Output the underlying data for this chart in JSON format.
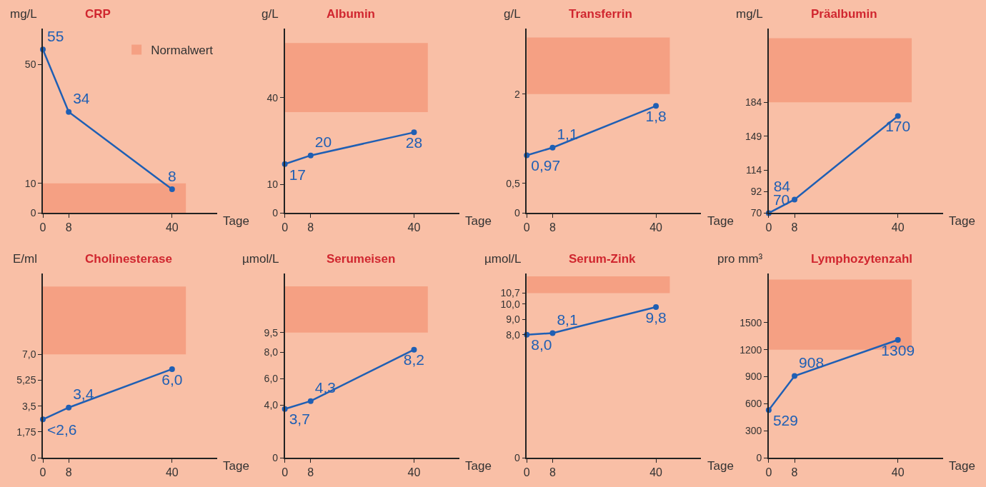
{
  "chart_data": [
    {
      "type": "line",
      "title": "CRP",
      "ylabel": "mg/L",
      "xlabel": "Tage",
      "x": [
        0,
        8,
        40
      ],
      "values": [
        55,
        34,
        8
      ],
      "value_labels": [
        "55",
        "34",
        "8"
      ],
      "color": "#1f5fb4",
      "marker": "circle",
      "xlim": [
        0,
        54
      ],
      "xticks": [
        0,
        8,
        40
      ],
      "ylim": [
        0,
        62
      ],
      "yticks": [
        0,
        10,
        50
      ],
      "bands": [
        {
          "axis": "y",
          "from": 0,
          "to": 10,
          "label": "Normalwert",
          "color": "#f5a083"
        }
      ],
      "legend": "top right"
    },
    {
      "type": "line",
      "title": "Albumin",
      "ylabel": "g/L",
      "xlabel": "Tage",
      "x": [
        0,
        8,
        40
      ],
      "values": [
        17,
        20,
        28
      ],
      "value_labels": [
        "17",
        "20",
        "28"
      ],
      "color": "#1f5fb4",
      "marker": "circle",
      "xlim": [
        0,
        54
      ],
      "xticks": [
        0,
        8,
        40
      ],
      "ylim": [
        0,
        64
      ],
      "yticks": [
        0,
        10,
        40
      ],
      "bands": [
        {
          "axis": "y",
          "from": 35,
          "to": 59,
          "color": "#f5a083"
        }
      ]
    },
    {
      "type": "line",
      "title": "Transferrin",
      "ylabel": "g/L",
      "xlabel": "Tage",
      "x": [
        0,
        8,
        40
      ],
      "values": [
        0.97,
        1.1,
        1.8
      ],
      "value_labels": [
        "0,97",
        "1,1",
        "1,8"
      ],
      "color": "#1f5fb4",
      "marker": "circle",
      "xlim": [
        0,
        54
      ],
      "xticks": [
        0,
        8,
        40
      ],
      "ylim": [
        0,
        3.1
      ],
      "yticks": [
        0,
        {
          "value": 0.5,
          "label": "0,5"
        },
        2
      ],
      "bands": [
        {
          "axis": "y",
          "from": 2,
          "to": 2.95,
          "color": "#f5a083"
        }
      ]
    },
    {
      "type": "line",
      "title": "Präalbumin",
      "ylabel": "mg/L",
      "xlabel": "Tage",
      "x": [
        0,
        8,
        40
      ],
      "values": [
        70,
        84,
        170
      ],
      "value_labels": [
        "70",
        "84",
        "170"
      ],
      "color": "#1f5fb4",
      "marker": "circle",
      "xlim": [
        0,
        54
      ],
      "xticks": [
        0,
        8,
        40
      ],
      "ylim": [
        70,
        260
      ],
      "yticks": [
        70,
        92,
        114,
        149,
        184
      ],
      "bands": [
        {
          "axis": "y",
          "from": 184,
          "to": 250,
          "color": "#f5a083"
        }
      ]
    },
    {
      "type": "line",
      "title": "Cholinesterase",
      "ylabel": "E/ml",
      "xlabel": "Tage",
      "x": [
        0,
        8,
        40
      ],
      "values": [
        2.6,
        3.4,
        6.0
      ],
      "value_labels": [
        "<2,6",
        "3,4",
        "6,0"
      ],
      "color": "#1f5fb4",
      "marker": "circle",
      "xlim": [
        0,
        54
      ],
      "xticks": [
        0,
        8,
        40
      ],
      "ylim": [
        0,
        12.5
      ],
      "yticks": [
        0,
        {
          "value": 1.75,
          "label": "1,75"
        },
        {
          "value": 3.5,
          "label": "3,5"
        },
        {
          "value": 5.25,
          "label": "5,25"
        },
        {
          "value": 7.0,
          "label": "7,0"
        }
      ],
      "bands": [
        {
          "axis": "y",
          "from": 7.0,
          "to": 11.6,
          "color": "#f5a083"
        }
      ]
    },
    {
      "type": "line",
      "title": "Serumeisen",
      "ylabel": "µmol/L",
      "xlabel": "Tage",
      "x": [
        0,
        8,
        40
      ],
      "values": [
        3.7,
        4.3,
        8.2
      ],
      "value_labels": [
        "3,7",
        "4,3",
        "8,2"
      ],
      "color": "#1f5fb4",
      "marker": "circle",
      "xlim": [
        0,
        54
      ],
      "xticks": [
        0,
        8,
        40
      ],
      "ylim": [
        0,
        14
      ],
      "yticks": [
        0,
        {
          "value": 4.0,
          "label": "4,0"
        },
        {
          "value": 6.0,
          "label": "6,0"
        },
        {
          "value": 8.0,
          "label": "8,0"
        },
        {
          "value": 9.5,
          "label": "9,5"
        }
      ],
      "bands": [
        {
          "axis": "y",
          "from": 9.5,
          "to": 13,
          "color": "#f5a083"
        }
      ]
    },
    {
      "type": "line",
      "title": "Serum-Zink",
      "ylabel": "µmol/L",
      "xlabel": "Tage",
      "x": [
        0,
        8,
        40
      ],
      "values": [
        8.0,
        8.1,
        9.8
      ],
      "value_labels": [
        "8,0",
        "8,1",
        "9,8"
      ],
      "color": "#1f5fb4",
      "marker": "circle",
      "xlim": [
        0,
        54
      ],
      "xticks": [
        0,
        8,
        40
      ],
      "ylim": [
        0,
        12
      ],
      "yticks": [
        0,
        {
          "value": 8.0,
          "label": "8,0"
        },
        {
          "value": 9.0,
          "label": "9,0"
        },
        {
          "value": 10.0,
          "label": "10,0"
        },
        {
          "value": 10.7,
          "label": "10,7"
        }
      ],
      "bands": [
        {
          "axis": "y",
          "from": 10.7,
          "to": 11.8,
          "color": "#f5a083"
        }
      ]
    },
    {
      "type": "line",
      "title": "Lymphozytenzahl",
      "ylabel": "pro mm³",
      "xlabel": "Tage",
      "x": [
        0,
        8,
        40
      ],
      "values": [
        529,
        908,
        1309
      ],
      "value_labels": [
        "529",
        "908",
        "1309"
      ],
      "color": "#1f5fb4",
      "marker": "circle",
      "xlim": [
        0,
        54
      ],
      "xticks": [
        0,
        8,
        40
      ],
      "ylim": [
        0,
        2050
      ],
      "yticks": [
        0,
        300,
        600,
        900,
        1200,
        1500
      ],
      "bands": [
        {
          "axis": "y",
          "from": 1200,
          "to": 1980,
          "color": "#f5a083"
        }
      ]
    }
  ]
}
